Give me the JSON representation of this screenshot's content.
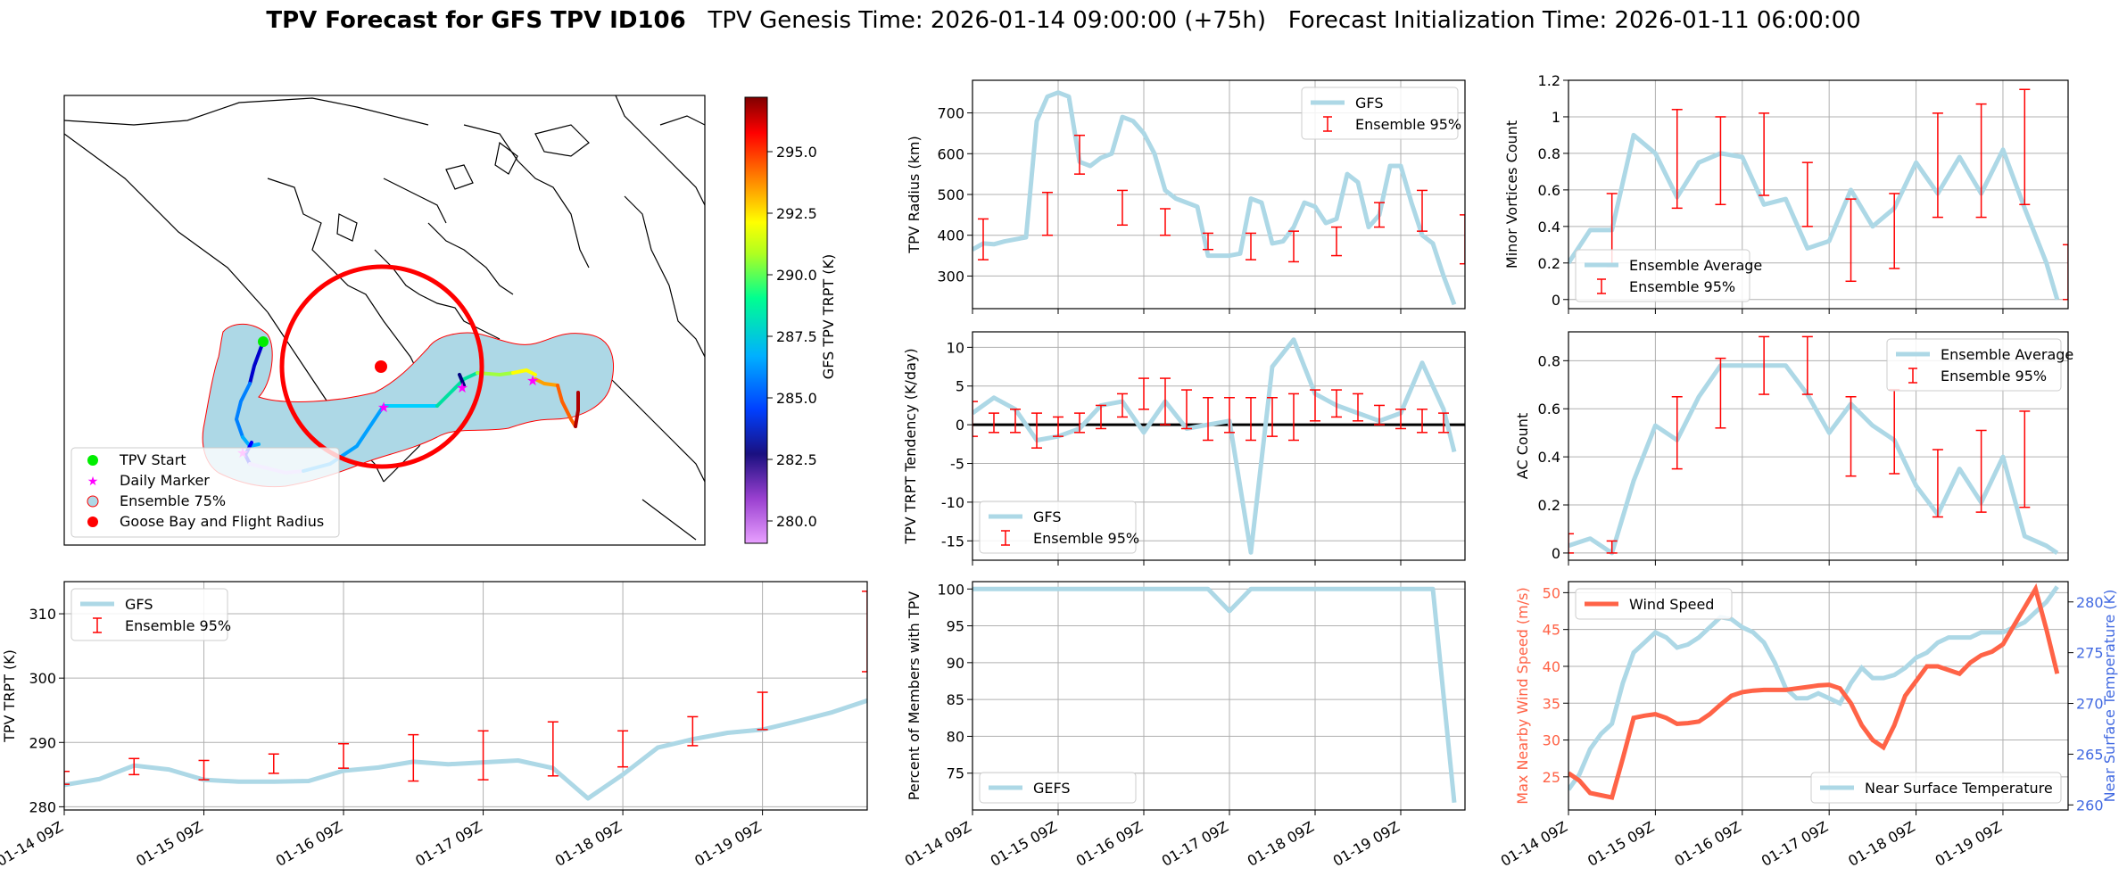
{
  "title": {
    "bold": "TPV Forecast for GFS TPV ID106",
    "genesis": "TPV Genesis Time: 2026-01-14 09:00:00 (+75h)",
    "init": "Forecast Initialization Time: 2026-01-11 06:00:00"
  },
  "x_tick_labels": [
    "01-14 09Z",
    "01-15 09Z",
    "01-16 09Z",
    "01-17 09Z",
    "01-18 09Z",
    "01-19 09Z"
  ],
  "colors": {
    "gfs_line": "#add8e6",
    "ensemble": "#ff0000",
    "wind": "#ff6347",
    "temp_axis": "#4169e1",
    "zero_line": "#000000"
  },
  "map": {
    "colorbar_label": "GFS TPV TRPT (K)",
    "colorbar_ticks": [
      "280.0",
      "282.5",
      "285.0",
      "287.5",
      "290.0",
      "292.5",
      "295.0"
    ],
    "legend": [
      "TPV Start",
      "Daily Marker",
      "Ensemble 75%",
      "Goose Bay and Flight Radius"
    ]
  },
  "chart_data": [
    {
      "id": "radius",
      "type": "line",
      "ylabel": "TPV Radius (km)",
      "ylim": [
        220,
        780
      ],
      "yticks": [
        300,
        400,
        500,
        600,
        700
      ],
      "legend": [
        "GFS",
        "Ensemble 95%"
      ],
      "x": [
        0,
        3,
        6,
        9,
        12,
        15,
        18,
        21,
        24,
        27,
        30,
        33,
        36,
        39,
        42,
        45,
        48,
        51,
        54,
        57,
        60,
        63,
        66,
        69,
        72,
        75,
        78,
        81,
        84,
        87,
        90,
        93,
        96,
        99,
        102,
        105,
        108,
        111,
        114,
        117,
        120,
        123,
        126,
        129,
        132,
        135
      ],
      "series": [
        {
          "name": "GFS",
          "values": [
            365,
            380,
            378,
            385,
            390,
            395,
            680,
            740,
            750,
            740,
            580,
            570,
            590,
            600,
            690,
            680,
            650,
            600,
            510,
            490,
            480,
            470,
            350,
            350,
            350,
            355,
            490,
            480,
            380,
            385,
            420,
            480,
            470,
            430,
            440,
            550,
            530,
            420,
            450,
            570,
            570,
            480,
            400,
            380,
            300,
            230
          ]
        }
      ],
      "ensemble": [
        [
          3,
          340,
          440
        ],
        [
          21,
          400,
          505
        ],
        [
          30,
          550,
          645
        ],
        [
          42,
          425,
          510
        ],
        [
          54,
          400,
          465
        ],
        [
          66,
          365,
          405
        ],
        [
          78,
          340,
          405
        ],
        [
          90,
          335,
          410
        ],
        [
          102,
          350,
          420
        ],
        [
          114,
          420,
          480
        ],
        [
          126,
          410,
          510
        ],
        [
          138,
          330,
          450
        ]
      ]
    },
    {
      "id": "minor",
      "type": "line",
      "ylabel": "Minor Vortices Count",
      "ylim": [
        -0.05,
        1.2
      ],
      "yticks": [
        0.0,
        0.2,
        0.4,
        0.6,
        0.8,
        1.0,
        1.2
      ],
      "legend": [
        "Ensemble Average",
        "Ensemble 95%"
      ],
      "x": [
        0,
        6,
        12,
        18,
        24,
        30,
        36,
        42,
        48,
        54,
        60,
        66,
        72,
        78,
        84,
        90,
        96,
        102,
        108,
        114,
        120,
        126,
        132,
        135
      ],
      "series": [
        {
          "name": "Ensemble Average",
          "values": [
            0.2,
            0.38,
            0.38,
            0.9,
            0.8,
            0.56,
            0.75,
            0.8,
            0.78,
            0.52,
            0.55,
            0.28,
            0.32,
            0.6,
            0.4,
            0.5,
            0.75,
            0.58,
            0.78,
            0.58,
            0.82,
            0.5,
            0.2,
            0.0
          ]
        }
      ],
      "ensemble": [
        [
          12,
          0.18,
          0.58
        ],
        [
          30,
          0.5,
          1.04
        ],
        [
          42,
          0.52,
          1.0
        ],
        [
          54,
          0.57,
          1.02
        ],
        [
          66,
          0.4,
          0.75
        ],
        [
          78,
          0.1,
          0.55
        ],
        [
          90,
          0.17,
          0.58
        ],
        [
          102,
          0.45,
          1.02
        ],
        [
          114,
          0.45,
          1.07
        ],
        [
          126,
          0.52,
          1.15
        ],
        [
          138,
          0.0,
          0.3
        ]
      ]
    },
    {
      "id": "tendency",
      "type": "line",
      "ylabel": "TPV TRPT Tendency (K/day)",
      "ylim": [
        -17.5,
        12
      ],
      "yticks": [
        -15,
        -10,
        -5,
        0,
        5,
        10
      ],
      "legend": [
        "GFS",
        "Ensemble 95%"
      ],
      "x": [
        0,
        6,
        12,
        18,
        24,
        30,
        36,
        42,
        48,
        54,
        60,
        66,
        72,
        78,
        84,
        90,
        96,
        102,
        108,
        114,
        120,
        126,
        132,
        135
      ],
      "series": [
        {
          "name": "GFS",
          "values": [
            1.5,
            3.5,
            2.0,
            -2.0,
            -1.5,
            -0.5,
            2.5,
            3.0,
            -1.0,
            3.0,
            -0.5,
            0.0,
            0.5,
            -16.5,
            7.5,
            11.0,
            4.0,
            2.5,
            1.5,
            0.5,
            1.5,
            8.0,
            2.0,
            -3.5
          ]
        }
      ],
      "ensemble": [
        [
          0,
          -1.5,
          3.0
        ],
        [
          6,
          -1,
          1.5
        ],
        [
          12,
          -1,
          2
        ],
        [
          18,
          -3,
          1.5
        ],
        [
          24,
          -1.5,
          1
        ],
        [
          30,
          -1,
          1.5
        ],
        [
          36,
          -0.5,
          2.5
        ],
        [
          42,
          1,
          4
        ],
        [
          48,
          2,
          6
        ],
        [
          54,
          0,
          6
        ],
        [
          60,
          -0.5,
          4.5
        ],
        [
          66,
          -2,
          3.5
        ],
        [
          72,
          -1,
          3.5
        ],
        [
          78,
          -2,
          3.5
        ],
        [
          84,
          -1.5,
          3.5
        ],
        [
          90,
          -2,
          4
        ],
        [
          96,
          0.5,
          4.5
        ],
        [
          102,
          1,
          4.5
        ],
        [
          108,
          0.5,
          4
        ],
        [
          114,
          0,
          2.5
        ],
        [
          120,
          -0.5,
          2
        ],
        [
          126,
          -1,
          2
        ],
        [
          132,
          -1,
          1.5
        ]
      ]
    },
    {
      "id": "ac",
      "type": "line",
      "ylabel": "AC Count",
      "ylim": [
        -0.03,
        0.92
      ],
      "yticks": [
        0.0,
        0.2,
        0.4,
        0.6,
        0.8
      ],
      "legend": [
        "Ensemble Average",
        "Ensemble 95%"
      ],
      "x": [
        0,
        6,
        12,
        18,
        24,
        30,
        36,
        42,
        48,
        54,
        60,
        66,
        72,
        78,
        84,
        90,
        96,
        102,
        108,
        114,
        120,
        126,
        132,
        135
      ],
      "series": [
        {
          "name": "Ensemble Average",
          "values": [
            0.03,
            0.06,
            0.0,
            0.3,
            0.53,
            0.47,
            0.65,
            0.78,
            0.78,
            0.78,
            0.78,
            0.66,
            0.5,
            0.62,
            0.53,
            0.47,
            0.28,
            0.16,
            0.35,
            0.21,
            0.4,
            0.07,
            0.03,
            0.0
          ]
        }
      ],
      "ensemble": [
        [
          0,
          0.0,
          0.08
        ],
        [
          12,
          0.0,
          0.05
        ],
        [
          30,
          0.35,
          0.65
        ],
        [
          42,
          0.52,
          0.81
        ],
        [
          54,
          0.66,
          0.9
        ],
        [
          66,
          0.66,
          0.9
        ],
        [
          78,
          0.32,
          0.65
        ],
        [
          90,
          0.33,
          0.68
        ],
        [
          102,
          0.15,
          0.43
        ],
        [
          114,
          0.17,
          0.51
        ],
        [
          126,
          0.19,
          0.59
        ]
      ]
    },
    {
      "id": "trpt",
      "type": "line",
      "ylabel": "TPV TRPT (K)",
      "ylim": [
        279.5,
        315
      ],
      "yticks": [
        280,
        290,
        300,
        310
      ],
      "legend": [
        "GFS",
        "Ensemble 95%"
      ],
      "x": [
        0,
        6,
        12,
        18,
        24,
        30,
        36,
        42,
        48,
        54,
        60,
        66,
        72,
        78,
        84,
        90,
        96,
        102,
        108,
        114,
        120,
        126,
        132,
        138
      ],
      "series": [
        {
          "name": "GFS",
          "values": [
            283.4,
            284.3,
            286.4,
            285.8,
            284.2,
            283.9,
            283.9,
            284.0,
            285.6,
            286.1,
            287.0,
            286.6,
            286.9,
            287.2,
            286.0,
            281.3,
            285.0,
            289.2,
            290.5,
            291.5,
            292.0,
            293.3,
            294.7,
            296.5
          ]
        }
      ],
      "ensemble": [
        [
          0,
          283.5,
          285.5
        ],
        [
          12,
          285.0,
          287.5
        ],
        [
          24,
          284.2,
          287.2
        ],
        [
          36,
          285.2,
          288.2
        ],
        [
          48,
          286.0,
          289.8
        ],
        [
          60,
          284.0,
          291.2
        ],
        [
          72,
          284.2,
          291.8
        ],
        [
          84,
          284.8,
          293.2
        ],
        [
          96,
          286.2,
          291.8
        ],
        [
          108,
          289.5,
          294.0
        ],
        [
          120,
          292.0,
          297.8
        ],
        [
          138,
          301.0,
          313.5
        ]
      ]
    },
    {
      "id": "percent",
      "type": "line",
      "ylabel": "Percent of Members with TPV",
      "ylim": [
        70,
        101
      ],
      "yticks": [
        75,
        80,
        85,
        90,
        95,
        100
      ],
      "legend": [
        "GEFS"
      ],
      "x": [
        0,
        66,
        72,
        78,
        126,
        129,
        135
      ],
      "series": [
        {
          "name": "GEFS",
          "values": [
            100,
            100,
            97,
            100,
            100,
            100,
            71
          ]
        }
      ]
    },
    {
      "id": "wind",
      "type": "line",
      "ylabel": "Max Nearby Wind Speed (m/s)",
      "ylabel2": "Near Surface Temperature (K)",
      "ylim": [
        20.5,
        51.5
      ],
      "ylim2": [
        259.5,
        282
      ],
      "yticks": [
        25,
        30,
        35,
        40,
        45,
        50
      ],
      "yticks2": [
        260,
        265,
        270,
        275,
        280
      ],
      "legend": [
        "Wind Speed"
      ],
      "legend2": [
        "Near Surface Temperature"
      ],
      "x": [
        0,
        3,
        6,
        9,
        12,
        15,
        18,
        21,
        24,
        27,
        30,
        33,
        36,
        39,
        42,
        45,
        48,
        51,
        54,
        57,
        60,
        63,
        66,
        69,
        72,
        75,
        78,
        81,
        84,
        87,
        90,
        93,
        96,
        99,
        102,
        105,
        108,
        111,
        114,
        117,
        120,
        123,
        126,
        129,
        132,
        135
      ],
      "series": [
        {
          "name": "Wind Speed",
          "values": [
            25.5,
            24.5,
            22.8,
            22.5,
            22.2,
            27.5,
            33.0,
            33.3,
            33.5,
            33.0,
            32.2,
            32.3,
            32.5,
            33.5,
            34.8,
            36.0,
            36.5,
            36.7,
            36.8,
            36.8,
            36.8,
            37.0,
            37.2,
            37.4,
            37.5,
            37.0,
            35.0,
            32.0,
            30.0,
            29.0,
            32.0,
            36.0,
            38.0,
            40.0,
            40.0,
            39.5,
            39.0,
            40.5,
            41.5,
            42.0,
            43.0,
            45.5,
            48.0,
            50.5,
            45.0,
            39.0
          ]
        },
        {
          "name": "Near Surface Temperature",
          "values": [
            261.5,
            263,
            265.5,
            267,
            268,
            272,
            275,
            276,
            277,
            276.5,
            275.5,
            275.8,
            276.5,
            277.5,
            278.5,
            278.3,
            277.5,
            277,
            276,
            274,
            271.5,
            270.5,
            270.5,
            271,
            270.5,
            270,
            272,
            273.5,
            272.5,
            272.5,
            272.8,
            273.5,
            274.5,
            275,
            276,
            276.5,
            276.5,
            276.5,
            277,
            277,
            277,
            277.5,
            278,
            279,
            280,
            281.5
          ]
        }
      ]
    }
  ]
}
